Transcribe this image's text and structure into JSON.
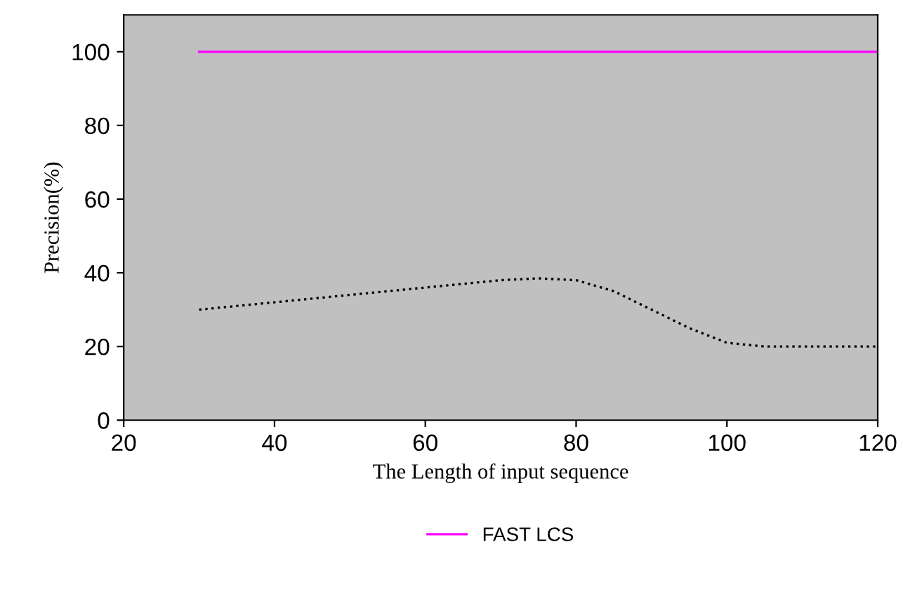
{
  "chart_data": {
    "type": "line",
    "xlabel": "The Length of input sequence",
    "ylabel": "Precision(%)",
    "xlim": [
      20,
      120
    ],
    "xticks": [
      20,
      40,
      60,
      80,
      100,
      120
    ],
    "ylim": [
      0,
      110
    ],
    "yticks": [
      0,
      20,
      40,
      60,
      80,
      100
    ],
    "grid": false,
    "legend": "bottom",
    "marker": "none",
    "series": [
      {
        "name": "FAST LCS",
        "color": "#ff00ff",
        "line_style": "solid",
        "x": [
          30,
          120
        ],
        "values": [
          100,
          100
        ]
      },
      {
        "color": "#000000",
        "line_style": "dotted",
        "x": [
          30,
          40,
          50,
          60,
          70,
          75,
          80,
          85,
          90,
          95,
          100,
          105,
          110,
          120
        ],
        "values": [
          30,
          32,
          34,
          36,
          38,
          38.5,
          38,
          35,
          30,
          25,
          21,
          20,
          20,
          20
        ]
      }
    ]
  }
}
